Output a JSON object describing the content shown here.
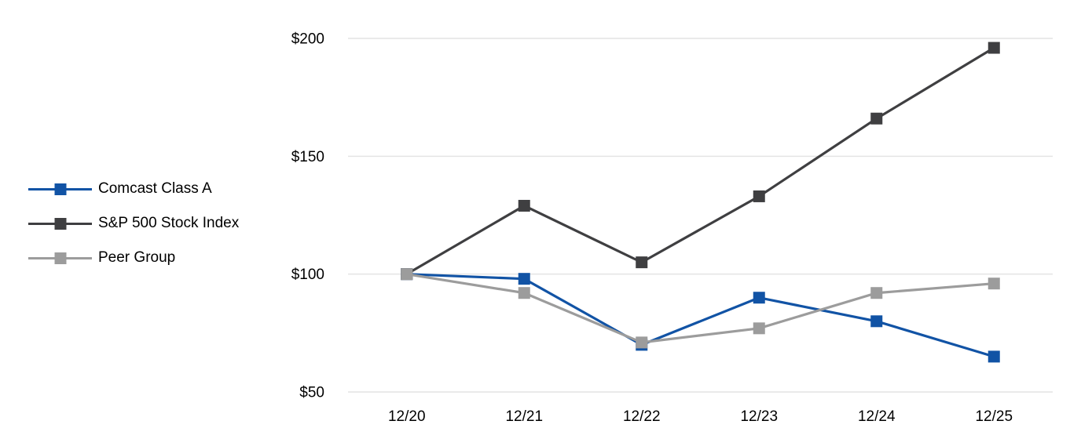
{
  "chart_data": {
    "type": "line",
    "title": "",
    "x_categories": [
      "12/20",
      "12/21",
      "12/22",
      "12/23",
      "12/24",
      "12/25"
    ],
    "series": [
      {
        "name": "Comcast Class A",
        "color": "#1153A5",
        "values": [
          100,
          98,
          70,
          90,
          80,
          65
        ]
      },
      {
        "name": "S&P 500 Stock Index",
        "color": "#3F3F41",
        "values": [
          100,
          129,
          105,
          133,
          166,
          196
        ]
      },
      {
        "name": "Peer Group",
        "color": "#9C9C9C",
        "values": [
          100,
          92,
          71,
          77,
          92,
          96
        ]
      }
    ],
    "y_ticks": [
      50,
      100,
      150,
      200
    ],
    "y_tick_labels": [
      "$50",
      "$100",
      "$150",
      "$200"
    ],
    "ylim": [
      50,
      200
    ],
    "xlabel": "",
    "ylabel": "",
    "grid": "horizontal",
    "legend_position": "left",
    "marker": "square",
    "colors": {
      "gridline": "#E4E4E4",
      "text": "#000000",
      "background": "#FFFFFF"
    }
  }
}
